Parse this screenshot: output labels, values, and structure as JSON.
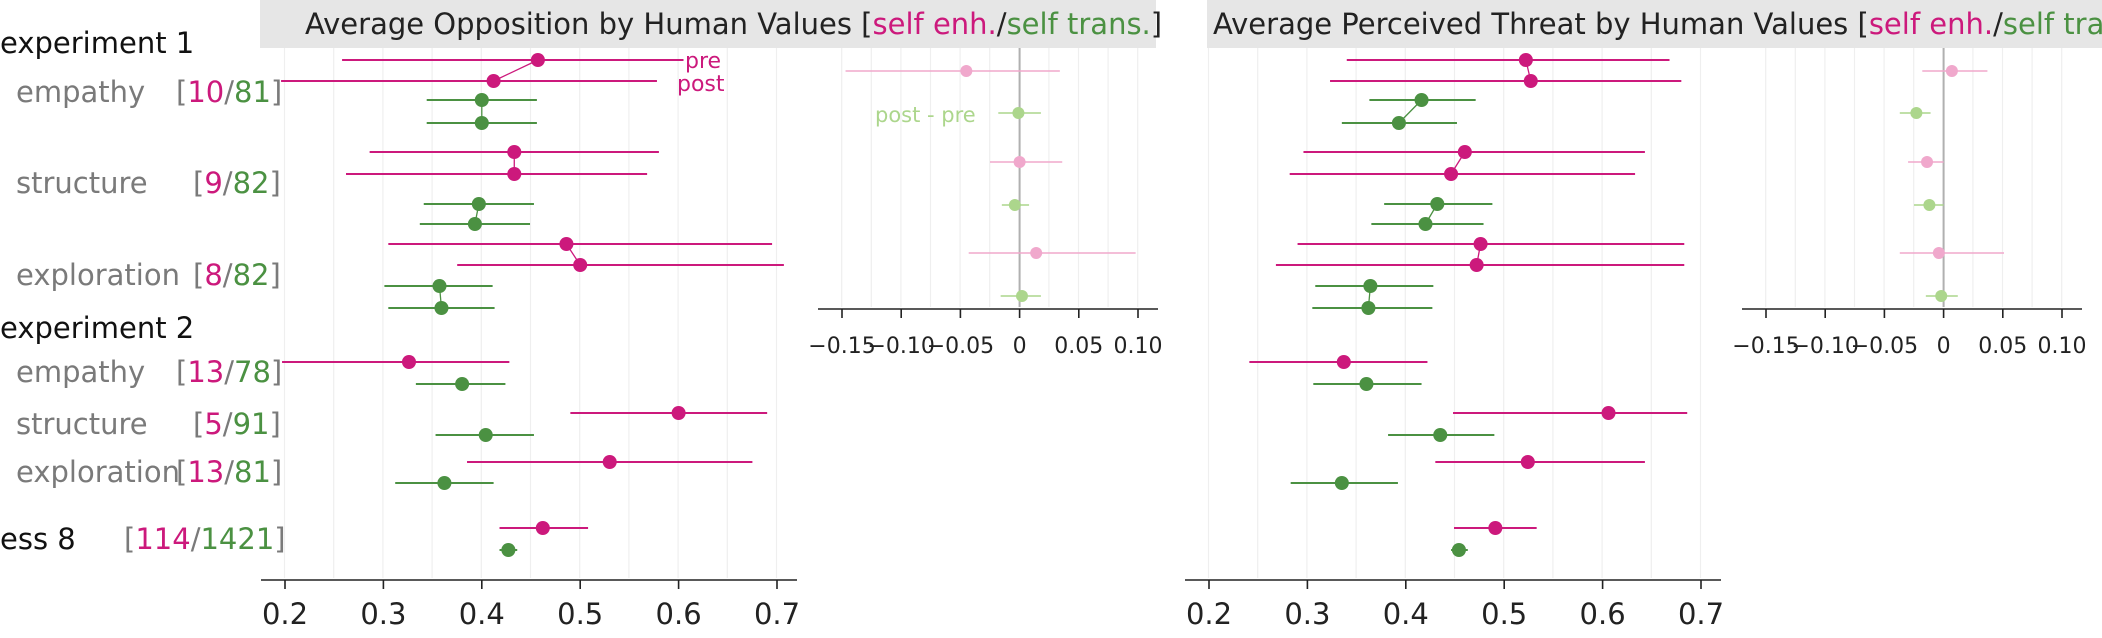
{
  "colors": {
    "enh": "#cc197c",
    "trans": "#4b9142",
    "enh_light": "#f0a8cc",
    "trans_light": "#acd68c",
    "title_bg": "#e6e6e6",
    "label_gray": "#7a7a7a",
    "grid": "#efefef",
    "zero_line": "#b0b0b0"
  },
  "row_labels": {
    "groups": [
      "experiment 1",
      "experiment 2"
    ],
    "items": [
      {
        "name": "empathy",
        "n_enh": "10",
        "n_trans": "81"
      },
      {
        "name": "structure",
        "n_enh": "9",
        "n_trans": "82"
      },
      {
        "name": "exploration",
        "n_enh": "8",
        "n_trans": "82"
      },
      {
        "name": "empathy",
        "n_enh": "13",
        "n_trans": "78"
      },
      {
        "name": "structure",
        "n_enh": "5",
        "n_trans": "91"
      },
      {
        "name": "exploration",
        "n_enh": "13",
        "n_trans": "81"
      },
      {
        "name": "ess 8",
        "n_enh": "114",
        "n_trans": "1421"
      }
    ]
  },
  "chart_data": [
    {
      "type": "scatter",
      "title_main": "Average Opposition by Human Values",
      "title_enh": "self enh.",
      "title_trans": "self trans.",
      "xlim": [
        0.2,
        0.7
      ],
      "xticks": [
        "0.2",
        "0.3",
        "0.4",
        "0.5",
        "0.6",
        "0.7"
      ],
      "annotations": [
        "pre",
        "post"
      ],
      "series": [
        {
          "name": "self enh.",
          "label": "experiment 1 empathy",
          "pre": [
            0.457,
            0.258,
            0.605
          ],
          "post": [
            0.412,
            0.196,
            0.578
          ]
        },
        {
          "name": "self trans.",
          "label": "experiment 1 empathy",
          "pre": [
            0.4,
            0.344,
            0.456
          ],
          "post": [
            0.4,
            0.344,
            0.456
          ]
        },
        {
          "name": "self enh.",
          "label": "experiment 1 structure",
          "pre": [
            0.433,
            0.286,
            0.58
          ],
          "post": [
            0.433,
            0.262,
            0.568
          ]
        },
        {
          "name": "self trans.",
          "label": "experiment 1 structure",
          "pre": [
            0.397,
            0.341,
            0.453
          ],
          "post": [
            0.393,
            0.337,
            0.449
          ]
        },
        {
          "name": "self enh.",
          "label": "experiment 1 exploration",
          "pre": [
            0.486,
            0.305,
            0.695
          ],
          "post": [
            0.5,
            0.375,
            0.707
          ]
        },
        {
          "name": "self trans.",
          "label": "experiment 1 exploration",
          "pre": [
            0.357,
            0.301,
            0.411
          ],
          "post": [
            0.359,
            0.305,
            0.413
          ]
        },
        {
          "name": "self enh.",
          "label": "experiment 2 empathy",
          "point": [
            0.326,
            0.197,
            0.428
          ]
        },
        {
          "name": "self trans.",
          "label": "experiment 2 empathy",
          "point": [
            0.38,
            0.333,
            0.424
          ]
        },
        {
          "name": "self enh.",
          "label": "experiment 2 structure",
          "point": [
            0.6,
            0.49,
            0.69
          ]
        },
        {
          "name": "self trans.",
          "label": "experiment 2 structure",
          "point": [
            0.404,
            0.353,
            0.453
          ]
        },
        {
          "name": "self enh.",
          "label": "experiment 2 exploration",
          "point": [
            0.53,
            0.385,
            0.675
          ]
        },
        {
          "name": "self trans.",
          "label": "experiment 2 exploration",
          "point": [
            0.362,
            0.312,
            0.412
          ]
        },
        {
          "name": "self enh.",
          "label": "ess 8",
          "point": [
            0.462,
            0.418,
            0.508
          ]
        },
        {
          "name": "self trans.",
          "label": "ess 8",
          "point": [
            0.427,
            0.418,
            0.436
          ]
        }
      ]
    },
    {
      "type": "scatter",
      "title": "",
      "xlim": [
        -0.15,
        0.1
      ],
      "xticks": [
        "−0.15",
        "−0.10",
        "−0.05",
        "0",
        "0.05",
        "0.10"
      ],
      "annotation": "post - pre",
      "series": [
        {
          "name": "self enh.",
          "label": "experiment 1 empathy",
          "values": [
            -0.045,
            -0.147,
            0.034
          ]
        },
        {
          "name": "self trans.",
          "label": "experiment 1 empathy",
          "values": [
            -0.001,
            -0.018,
            0.018
          ]
        },
        {
          "name": "self enh.",
          "label": "experiment 1 structure",
          "values": [
            0.0,
            -0.025,
            0.036
          ]
        },
        {
          "name": "self trans.",
          "label": "experiment 1 structure",
          "values": [
            -0.004,
            -0.015,
            0.008
          ]
        },
        {
          "name": "self enh.",
          "label": "experiment 1 exploration",
          "values": [
            0.014,
            -0.043,
            0.098
          ]
        },
        {
          "name": "self trans.",
          "label": "experiment 1 exploration",
          "values": [
            0.002,
            -0.016,
            0.018
          ]
        }
      ]
    },
    {
      "type": "scatter",
      "title_main": "Average Perceived Threat by Human Values",
      "title_enh": "self enh.",
      "title_trans": "self trans.",
      "xlim": [
        0.2,
        0.7
      ],
      "xticks": [
        "0.2",
        "0.3",
        "0.4",
        "0.5",
        "0.6",
        "0.7"
      ],
      "series": [
        {
          "name": "self enh.",
          "label": "experiment 1 empathy",
          "pre": [
            0.522,
            0.34,
            0.668
          ],
          "post": [
            0.527,
            0.323,
            0.68
          ]
        },
        {
          "name": "self trans.",
          "label": "experiment 1 empathy",
          "pre": [
            0.416,
            0.363,
            0.471
          ],
          "post": [
            0.393,
            0.335,
            0.452
          ]
        },
        {
          "name": "self enh.",
          "label": "experiment 1 structure",
          "pre": [
            0.46,
            0.296,
            0.643
          ],
          "post": [
            0.446,
            0.282,
            0.633
          ]
        },
        {
          "name": "self trans.",
          "label": "experiment 1 structure",
          "pre": [
            0.432,
            0.378,
            0.488
          ],
          "post": [
            0.42,
            0.365,
            0.479
          ]
        },
        {
          "name": "self enh.",
          "label": "experiment 1 exploration",
          "pre": [
            0.476,
            0.29,
            0.683
          ],
          "post": [
            0.472,
            0.268,
            0.683
          ]
        },
        {
          "name": "self trans.",
          "label": "experiment 1 exploration",
          "pre": [
            0.364,
            0.308,
            0.428
          ],
          "post": [
            0.362,
            0.305,
            0.427
          ]
        },
        {
          "name": "self enh.",
          "label": "experiment 2 empathy",
          "point": [
            0.337,
            0.241,
            0.422
          ]
        },
        {
          "name": "self trans.",
          "label": "experiment 2 empathy",
          "point": [
            0.36,
            0.306,
            0.416
          ]
        },
        {
          "name": "self enh.",
          "label": "experiment 2 structure",
          "point": [
            0.606,
            0.448,
            0.686
          ]
        },
        {
          "name": "self trans.",
          "label": "experiment 2 structure",
          "point": [
            0.435,
            0.382,
            0.49
          ]
        },
        {
          "name": "self enh.",
          "label": "experiment 2 exploration",
          "point": [
            0.524,
            0.43,
            0.643
          ]
        },
        {
          "name": "self trans.",
          "label": "experiment 2 exploration",
          "point": [
            0.335,
            0.283,
            0.392
          ]
        },
        {
          "name": "self enh.",
          "label": "ess 8",
          "point": [
            0.491,
            0.449,
            0.533
          ]
        },
        {
          "name": "self trans.",
          "label": "ess 8",
          "point": [
            0.454,
            0.446,
            0.463
          ]
        }
      ]
    },
    {
      "type": "scatter",
      "title": "",
      "xlim": [
        -0.15,
        0.1
      ],
      "xticks": [
        "−0.15",
        "−0.10",
        "−0.05",
        "0",
        "0.05",
        "0.10"
      ],
      "series": [
        {
          "name": "self enh.",
          "label": "experiment 1 empathy",
          "values": [
            0.007,
            -0.018,
            0.037
          ]
        },
        {
          "name": "self trans.",
          "label": "experiment 1 empathy",
          "values": [
            -0.023,
            -0.037,
            -0.011
          ]
        },
        {
          "name": "self enh.",
          "label": "experiment 1 structure",
          "values": [
            -0.014,
            -0.03,
            0.0
          ]
        },
        {
          "name": "self trans.",
          "label": "experiment 1 structure",
          "values": [
            -0.012,
            -0.025,
            0.0
          ]
        },
        {
          "name": "self enh.",
          "label": "experiment 1 exploration",
          "values": [
            -0.004,
            -0.037,
            0.051
          ]
        },
        {
          "name": "self trans.",
          "label": "experiment 1 exploration",
          "values": [
            -0.002,
            -0.015,
            0.012
          ]
        }
      ]
    }
  ]
}
